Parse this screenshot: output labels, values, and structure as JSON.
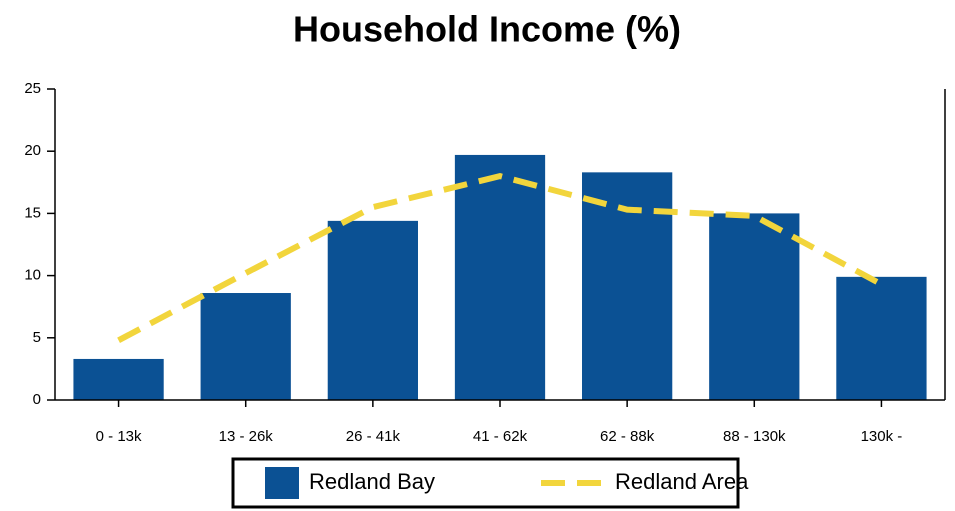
{
  "chart_data": {
    "type": "bar",
    "title": "Household Income (%)",
    "categories": [
      "0 - 13k",
      "13 - 26k",
      "26 - 41k",
      "41 - 62k",
      "62 - 88k",
      "88 - 130k",
      "130k -"
    ],
    "series": [
      {
        "name": "Redland Bay",
        "type": "bar",
        "color": "#0b5194",
        "values": [
          3.3,
          8.6,
          14.4,
          19.7,
          18.3,
          15.0,
          9.9
        ]
      },
      {
        "name": "Redland Area",
        "type": "line",
        "color": "#f2d53c",
        "values": [
          4.8,
          10.2,
          15.5,
          18.0,
          15.3,
          14.8,
          9.3
        ]
      }
    ],
    "ylim": [
      0,
      25
    ],
    "yticks": [
      0,
      5,
      10,
      15,
      20,
      25
    ],
    "grid": false,
    "legend": "bottom"
  }
}
